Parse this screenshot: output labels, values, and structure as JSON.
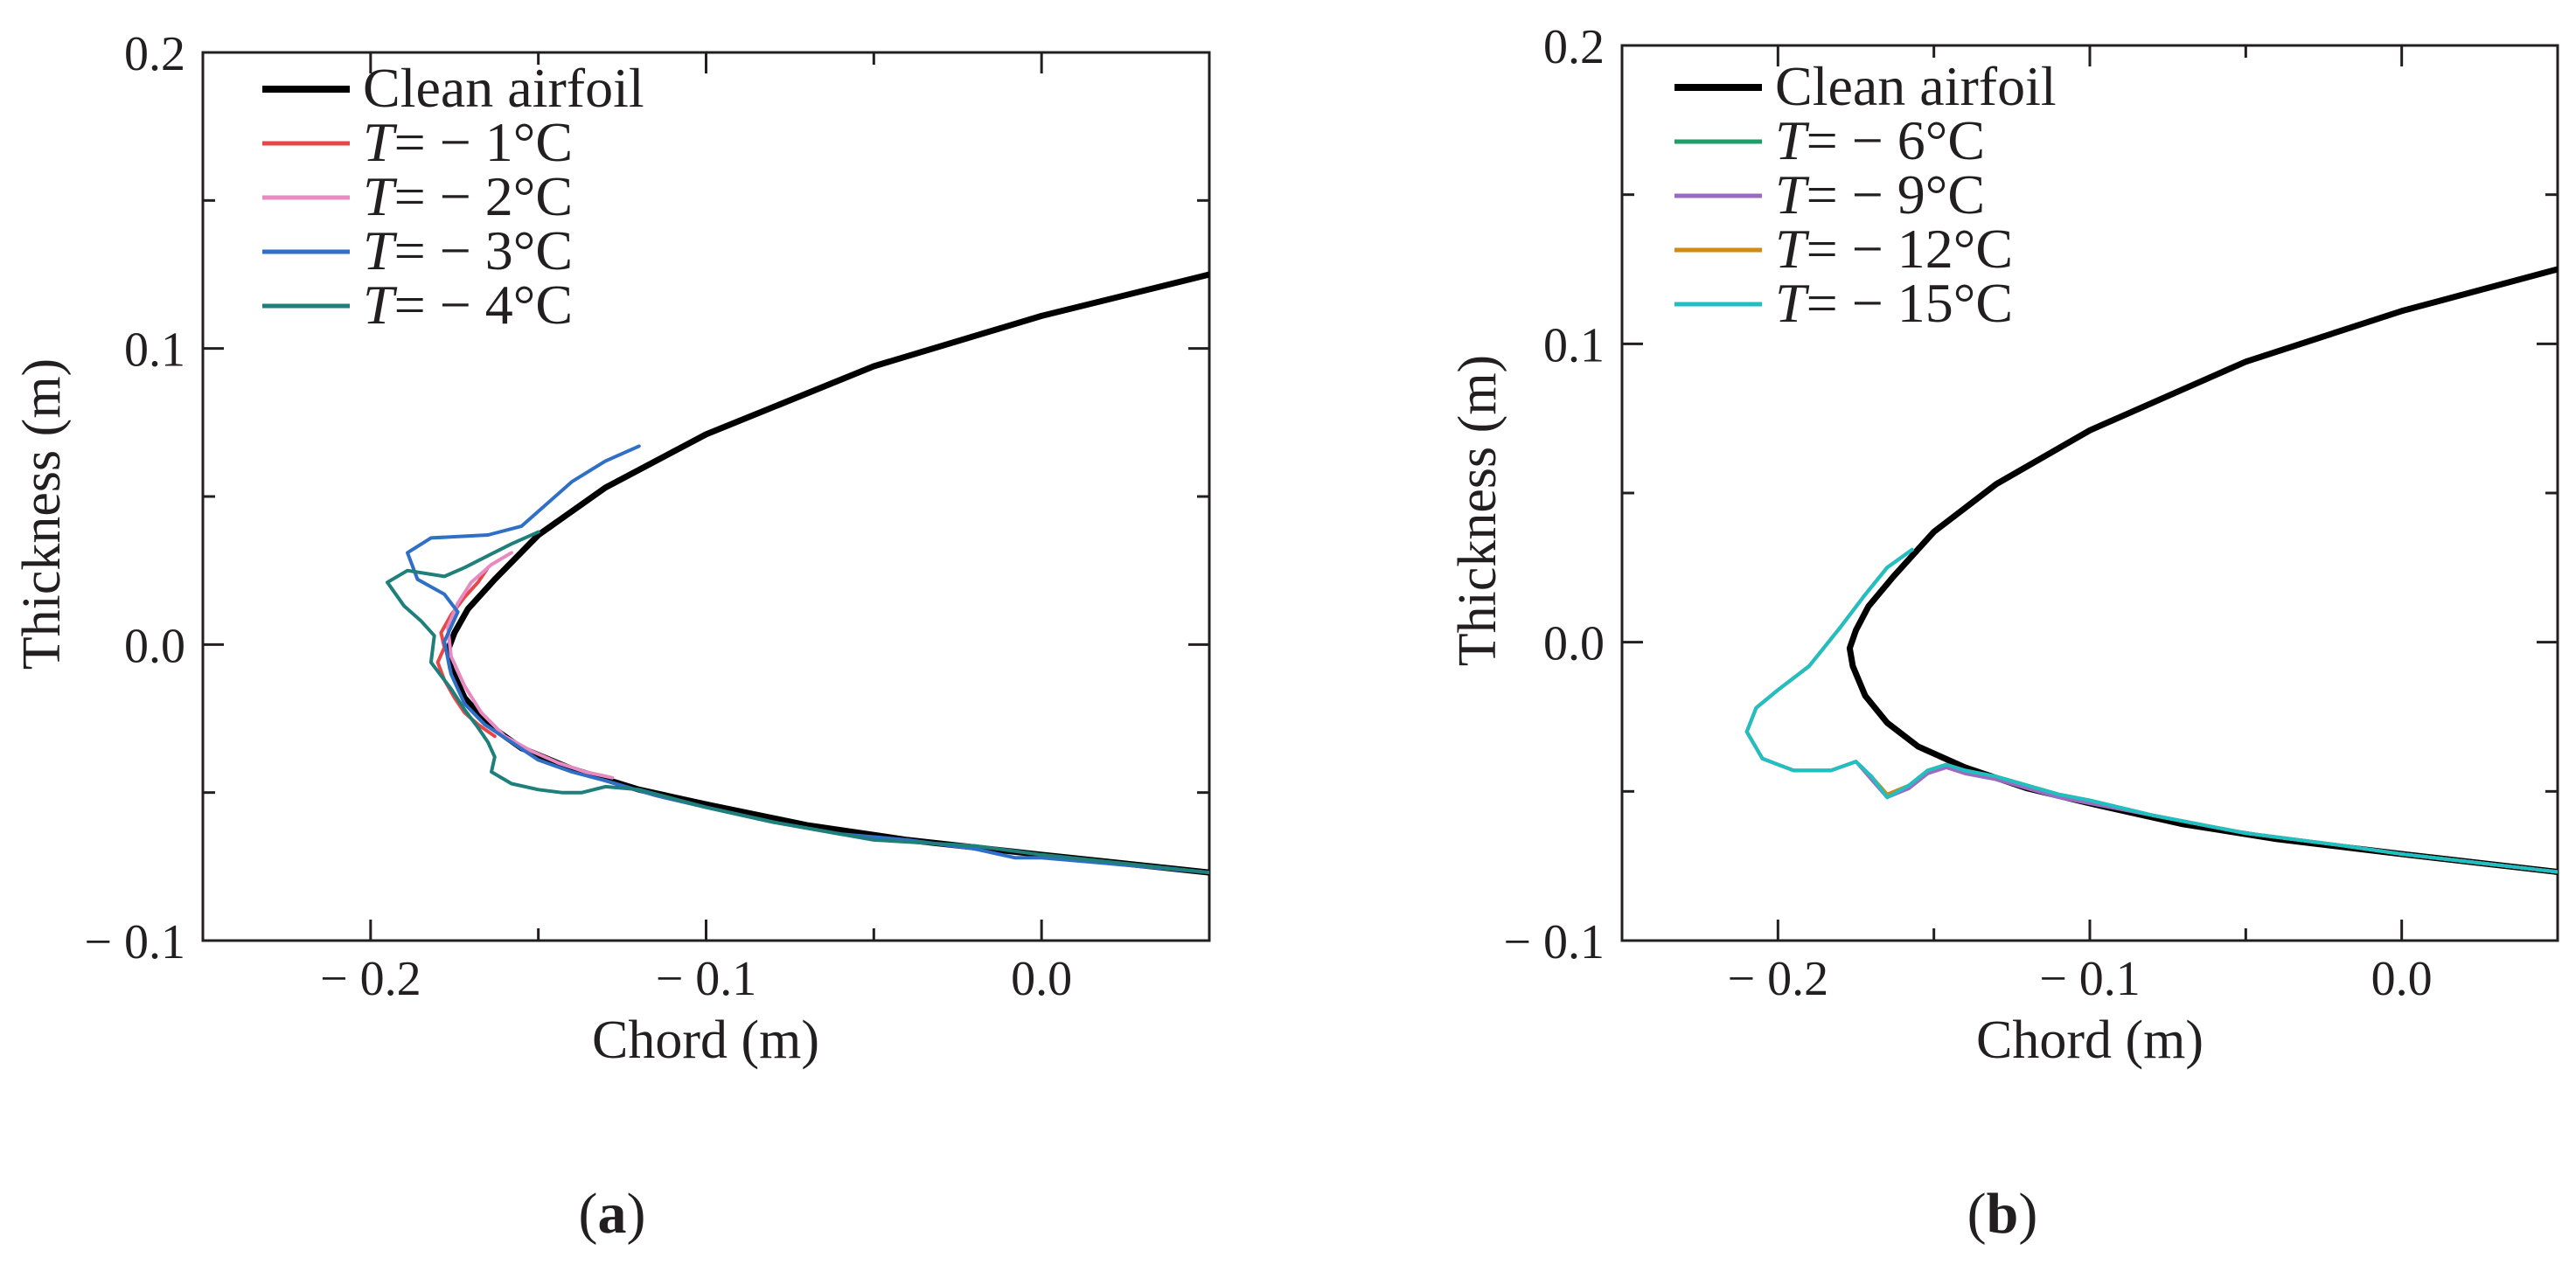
{
  "chart_data": [
    {
      "panel_label": "a",
      "type": "line",
      "xlabel": "Chord (m)",
      "ylabel": "Thickness (m)",
      "xlim": [
        -0.25,
        0.05
      ],
      "ylim": [
        -0.1,
        0.2
      ],
      "xticks": [
        "− 0.2",
        "− 0.1",
        "0.0"
      ],
      "yticks": [
        "0.2",
        "0.1",
        "0.0",
        "− 0.1"
      ],
      "legend_position": "top-left",
      "series": [
        {
          "name": "Clean airfoil",
          "color": "#000000",
          "x": [
            0.05,
            0.0,
            -0.05,
            -0.1,
            -0.13,
            -0.15,
            -0.163,
            -0.171,
            -0.175,
            -0.177,
            -0.176,
            -0.172,
            -0.165,
            -0.155,
            -0.14,
            -0.12,
            -0.1,
            -0.07,
            -0.04,
            0.0,
            0.05
          ],
          "y": [
            0.125,
            0.111,
            0.094,
            0.071,
            0.053,
            0.037,
            0.022,
            0.012,
            0.004,
            -0.002,
            -0.008,
            -0.018,
            -0.027,
            -0.035,
            -0.042,
            -0.049,
            -0.054,
            -0.061,
            -0.066,
            -0.071,
            -0.077
          ]
        },
        {
          "name": "T= − 1°C",
          "color": "#e8474a",
          "x": [
            -0.165,
            -0.168,
            -0.172,
            -0.176,
            -0.179,
            -0.178,
            -0.18,
            -0.178,
            -0.175,
            -0.172,
            -0.168,
            -0.163
          ],
          "y": [
            0.026,
            0.021,
            0.016,
            0.01,
            0.004,
            -0.001,
            -0.006,
            -0.012,
            -0.018,
            -0.023,
            -0.027,
            -0.031
          ]
        },
        {
          "name": "T= − 2°C",
          "color": "#e88ac2",
          "x": [
            -0.158,
            -0.164,
            -0.17,
            -0.174,
            -0.177,
            -0.176,
            -0.172,
            -0.167,
            -0.16,
            -0.152,
            -0.144,
            -0.136,
            -0.128
          ],
          "y": [
            0.031,
            0.027,
            0.021,
            0.014,
            0.006,
            -0.004,
            -0.014,
            -0.023,
            -0.031,
            -0.036,
            -0.04,
            -0.043,
            -0.045
          ]
        },
        {
          "name": "T= − 3°C",
          "color": "#2f6fc6",
          "x": [
            -0.12,
            -0.13,
            -0.14,
            -0.155,
            -0.165,
            -0.182,
            -0.189,
            -0.186,
            -0.178,
            -0.174,
            -0.178,
            -0.176,
            -0.172,
            -0.166,
            -0.158,
            -0.15,
            -0.14,
            -0.13,
            -0.115,
            -0.1,
            -0.08,
            -0.06,
            -0.04,
            -0.02,
            -0.008,
            0.0,
            0.02,
            0.05
          ],
          "y": [
            0.067,
            0.062,
            0.055,
            0.04,
            0.037,
            0.036,
            0.031,
            0.022,
            0.017,
            0.011,
            0.001,
            -0.01,
            -0.02,
            -0.027,
            -0.033,
            -0.039,
            -0.043,
            -0.046,
            -0.051,
            -0.055,
            -0.06,
            -0.064,
            -0.066,
            -0.069,
            -0.072,
            -0.072,
            -0.074,
            -0.077
          ]
        },
        {
          "name": "T= − 4°C",
          "color": "#1f7f7a",
          "x": [
            -0.15,
            -0.158,
            -0.165,
            -0.172,
            -0.178,
            -0.189,
            -0.195,
            -0.19,
            -0.185,
            -0.181,
            -0.182,
            -0.176,
            -0.172,
            -0.168,
            -0.165,
            -0.163,
            -0.164,
            -0.158,
            -0.15,
            -0.143,
            -0.137,
            -0.13,
            -0.12,
            -0.1,
            -0.08,
            -0.05,
            -0.02,
            0.0,
            0.05
          ],
          "y": [
            0.038,
            0.034,
            0.03,
            0.026,
            0.023,
            0.025,
            0.021,
            0.013,
            0.008,
            0.003,
            -0.006,
            -0.015,
            -0.022,
            -0.028,
            -0.033,
            -0.038,
            -0.043,
            -0.047,
            -0.049,
            -0.05,
            -0.05,
            -0.048,
            -0.049,
            -0.055,
            -0.06,
            -0.066,
            -0.068,
            -0.071,
            -0.077
          ]
        }
      ]
    },
    {
      "panel_label": "b",
      "type": "line",
      "xlabel": "Chord (m)",
      "ylabel": "Thickness (m)",
      "xlim": [
        -0.25,
        0.05
      ],
      "ylim": [
        -0.1,
        0.2
      ],
      "xticks": [
        "− 0.2",
        "− 0.1",
        "0.0"
      ],
      "yticks": [
        "0.2",
        "0.1",
        "0.0",
        "− 0.1"
      ],
      "legend_position": "top-left",
      "series": [
        {
          "name": "Clean airfoil",
          "color": "#000000",
          "x": [
            0.05,
            0.0,
            -0.05,
            -0.1,
            -0.13,
            -0.15,
            -0.163,
            -0.171,
            -0.175,
            -0.177,
            -0.176,
            -0.172,
            -0.165,
            -0.155,
            -0.14,
            -0.12,
            -0.1,
            -0.07,
            -0.04,
            0.0,
            0.05
          ],
          "y": [
            0.125,
            0.111,
            0.094,
            0.071,
            0.053,
            0.037,
            0.022,
            0.012,
            0.004,
            -0.002,
            -0.008,
            -0.018,
            -0.027,
            -0.035,
            -0.042,
            -0.049,
            -0.054,
            -0.061,
            -0.066,
            -0.071,
            -0.077
          ]
        },
        {
          "name": "T= − 6°C",
          "color": "#1f9e68",
          "x": [
            -0.157,
            -0.165,
            -0.172,
            -0.18,
            -0.19,
            -0.2,
            -0.207,
            -0.21,
            -0.205,
            -0.195,
            -0.183,
            -0.175,
            -0.17,
            -0.165,
            -0.158,
            -0.152,
            -0.146,
            -0.14,
            -0.13,
            -0.12,
            -0.11,
            -0.1,
            -0.08,
            -0.05,
            -0.02,
            0.0,
            0.05
          ],
          "y": [
            0.031,
            0.025,
            0.016,
            0.005,
            -0.008,
            -0.016,
            -0.022,
            -0.03,
            -0.039,
            -0.043,
            -0.043,
            -0.04,
            -0.045,
            -0.052,
            -0.048,
            -0.043,
            -0.041,
            -0.043,
            -0.045,
            -0.048,
            -0.051,
            -0.053,
            -0.058,
            -0.064,
            -0.068,
            -0.071,
            -0.077
          ]
        },
        {
          "name": "T= − 9°C",
          "color": "#9b6bc4",
          "x": [
            -0.157,
            -0.165,
            -0.172,
            -0.18,
            -0.19,
            -0.2,
            -0.207,
            -0.21,
            -0.205,
            -0.195,
            -0.183,
            -0.175,
            -0.17,
            -0.165,
            -0.158,
            -0.152,
            -0.146,
            -0.14,
            -0.13,
            -0.12,
            -0.11,
            -0.1,
            -0.08,
            -0.05,
            -0.02,
            0.0,
            0.05
          ],
          "y": [
            0.031,
            0.025,
            0.016,
            0.005,
            -0.008,
            -0.016,
            -0.022,
            -0.03,
            -0.039,
            -0.043,
            -0.043,
            -0.04,
            -0.046,
            -0.052,
            -0.049,
            -0.044,
            -0.042,
            -0.044,
            -0.046,
            -0.049,
            -0.052,
            -0.054,
            -0.058,
            -0.064,
            -0.068,
            -0.071,
            -0.077
          ]
        },
        {
          "name": "T= − 12°C",
          "color": "#d18a12",
          "x": [
            -0.157,
            -0.165,
            -0.172,
            -0.18,
            -0.19,
            -0.2,
            -0.207,
            -0.21,
            -0.205,
            -0.195,
            -0.183,
            -0.175,
            -0.17,
            -0.165,
            -0.158,
            -0.152,
            -0.146,
            -0.14,
            -0.13,
            -0.12,
            -0.11,
            -0.1,
            -0.08,
            -0.05,
            -0.02,
            0.0,
            0.05
          ],
          "y": [
            0.031,
            0.025,
            0.016,
            0.005,
            -0.008,
            -0.016,
            -0.022,
            -0.03,
            -0.039,
            -0.043,
            -0.043,
            -0.04,
            -0.045,
            -0.051,
            -0.048,
            -0.043,
            -0.041,
            -0.043,
            -0.045,
            -0.048,
            -0.051,
            -0.053,
            -0.058,
            -0.064,
            -0.068,
            -0.071,
            -0.077
          ]
        },
        {
          "name": "T= − 15°C",
          "color": "#1fc0c4",
          "x": [
            -0.157,
            -0.165,
            -0.172,
            -0.18,
            -0.19,
            -0.2,
            -0.207,
            -0.21,
            -0.205,
            -0.195,
            -0.183,
            -0.175,
            -0.17,
            -0.165,
            -0.158,
            -0.152,
            -0.146,
            -0.14,
            -0.13,
            -0.12,
            -0.11,
            -0.1,
            -0.08,
            -0.05,
            -0.02,
            0.0,
            0.05
          ],
          "y": [
            0.031,
            0.025,
            0.016,
            0.005,
            -0.008,
            -0.016,
            -0.022,
            -0.03,
            -0.039,
            -0.043,
            -0.043,
            -0.04,
            -0.045,
            -0.052,
            -0.048,
            -0.043,
            -0.041,
            -0.043,
            -0.045,
            -0.048,
            -0.051,
            -0.053,
            -0.058,
            -0.064,
            -0.068,
            -0.071,
            -0.077
          ]
        }
      ]
    }
  ]
}
